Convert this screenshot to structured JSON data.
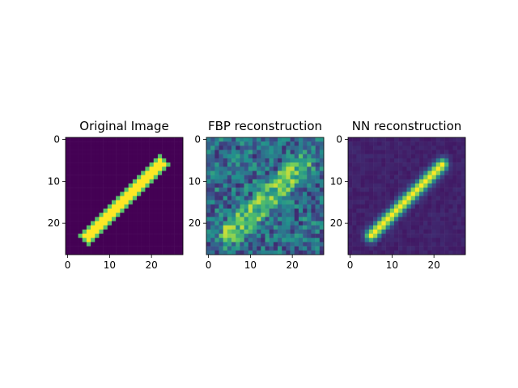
{
  "figure": {
    "background": "#ffffff",
    "colormap": "viridis",
    "colormap_stops": [
      "#440154",
      "#3b528b",
      "#21918c",
      "#5ec962",
      "#fde725"
    ]
  },
  "chart_data": [
    {
      "type": "heatmap",
      "title": "Original Image",
      "xlabel": "",
      "ylabel": "",
      "grid": false,
      "image_size": [
        28,
        28
      ],
      "xlim": [
        -0.5,
        27.5
      ],
      "ylim": [
        27.5,
        -0.5
      ],
      "xticks": [
        0,
        10,
        20
      ],
      "yticks": [
        0,
        10,
        20
      ],
      "content": "binary stroke of a diagonal digit '1' from about (5,23) to (22,6); background 0, stroke 1",
      "value_range": [
        0,
        1
      ]
    },
    {
      "type": "heatmap",
      "title": "FBP reconstruction",
      "xlabel": "",
      "ylabel": "",
      "grid": false,
      "image_size": [
        28,
        28
      ],
      "xlim": [
        -0.5,
        27.5
      ],
      "ylim": [
        27.5,
        -0.5
      ],
      "xticks": [
        0,
        10,
        20
      ],
      "yticks": [
        0,
        10,
        20
      ],
      "content": "noisy filtered back-projection of the same diagonal stroke; mid-range noise everywhere with a brighter diagonal band",
      "value_range": [
        0,
        1
      ]
    },
    {
      "type": "heatmap",
      "title": "NN reconstruction",
      "xlabel": "",
      "ylabel": "",
      "grid": false,
      "image_size": [
        28,
        28
      ],
      "xlim": [
        -0.5,
        27.5
      ],
      "ylim": [
        27.5,
        -0.5
      ],
      "xticks": [
        0,
        10,
        20
      ],
      "yticks": [
        0,
        10,
        20
      ],
      "content": "smooth neural-network reconstruction of the diagonal stroke on a dark, slightly noisy background",
      "value_range": [
        0,
        1
      ]
    }
  ]
}
